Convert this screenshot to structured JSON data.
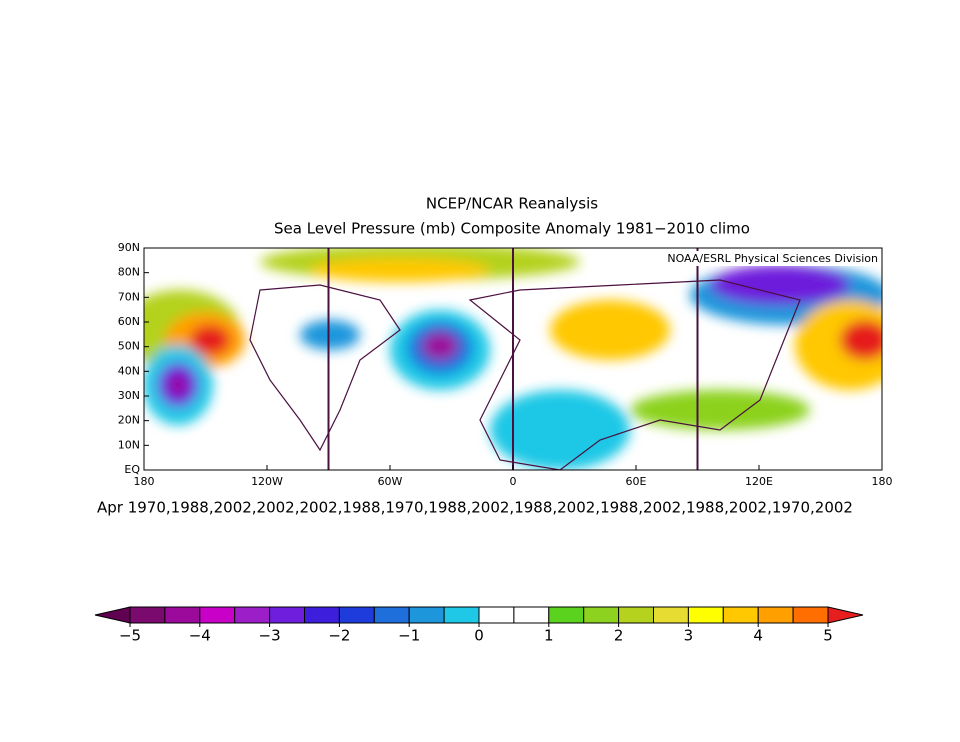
{
  "header": {
    "title": "NCEP/NCAR Reanalysis",
    "subtitle": "Sea Level Pressure (mb) Composite Anomaly 1981−2010 climo"
  },
  "map": {
    "credit": "NOAA/ESRL Physical Sciences Division",
    "caption": "Apr 1970,1988,2002,2002,2002,1988,1970,1988,2002,1988,2002,1988,2002,1988,2002,1970,2002",
    "lonlim": [
      -180,
      180
    ],
    "latlim": [
      0,
      90
    ],
    "x_ticks": [
      {
        "value": -180,
        "label": "180"
      },
      {
        "value": -120,
        "label": "120W"
      },
      {
        "value": -60,
        "label": "60W"
      },
      {
        "value": 0,
        "label": "0"
      },
      {
        "value": 60,
        "label": "60E"
      },
      {
        "value": 120,
        "label": "120E"
      },
      {
        "value": 180,
        "label": "180"
      }
    ],
    "y_ticks": [
      {
        "value": 0,
        "label": "EQ"
      },
      {
        "value": 10,
        "label": "10N"
      },
      {
        "value": 20,
        "label": "20N"
      },
      {
        "value": 30,
        "label": "30N"
      },
      {
        "value": 40,
        "label": "40N"
      },
      {
        "value": 50,
        "label": "50N"
      },
      {
        "value": 60,
        "label": "60N"
      },
      {
        "value": 70,
        "label": "70N"
      },
      {
        "value": 80,
        "label": "80N"
      },
      {
        "value": 90,
        "label": "90N"
      }
    ]
  },
  "colorbar": {
    "lim": [
      -5,
      5
    ],
    "colors": [
      "#5f0050",
      "#7a0a6e",
      "#9b0a9b",
      "#c800c8",
      "#9b1ec8",
      "#6e1edc",
      "#3c1edc",
      "#1e3cdc",
      "#1e6edc",
      "#1e96dc",
      "#1ec8e6",
      "#ffffff",
      "#ffffff",
      "#5ad21e",
      "#8cd21e",
      "#b4d21e",
      "#e6dc32",
      "#ffff00",
      "#ffc800",
      "#ffa000",
      "#ff6e00",
      "#e61e1e"
    ],
    "ticks": [
      {
        "value": -5,
        "label": "−5"
      },
      {
        "value": -4,
        "label": "−4"
      },
      {
        "value": -3,
        "label": "−3"
      },
      {
        "value": -2,
        "label": "−2"
      },
      {
        "value": -1,
        "label": "−1"
      },
      0,
      1,
      2,
      3,
      4,
      5
    ]
  }
}
